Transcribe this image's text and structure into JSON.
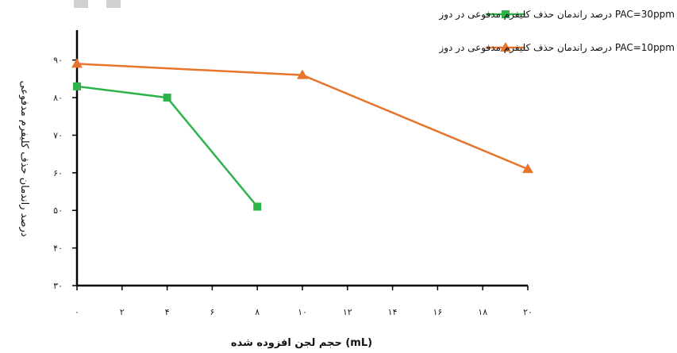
{
  "chart_data": {
    "type": "line",
    "ylabel": "درصد راندمان حذف کلیفرم مدفوعی",
    "xlabel": "حجم لجن افزوده شده (mL)",
    "xlim": [
      0,
      20
    ],
    "ylim": [
      30,
      95
    ],
    "x_ticks": [
      0,
      2,
      4,
      6,
      8,
      10,
      12,
      14,
      16,
      18,
      20
    ],
    "x_tick_labels": [
      "۰",
      "۲",
      "۴",
      "۶",
      "۸",
      "۱۰",
      "۱۲",
      "۱۴",
      "۱۶",
      "۱۸",
      "۲۰"
    ],
    "y_ticks": [
      30,
      40,
      50,
      60,
      70,
      80,
      90
    ],
    "y_tick_labels": [
      "۳۰",
      "۴۰",
      "۵۰",
      "۶۰",
      "۷۰",
      "۸۰",
      "۹۰"
    ],
    "grid": false,
    "legend_position": "top-right",
    "series": [
      {
        "name": "درصد راندمان حذف کلیفرم مدفوعی در دوز PAC=30ppm",
        "color": "#2db34a",
        "marker": "square",
        "x": [
          0,
          4,
          8
        ],
        "y": [
          83,
          80,
          51
        ]
      },
      {
        "name": "درصد راندمان حذف کلیفرم مدفوعی در دوز PAC=10ppm",
        "color": "#e8752c",
        "marker": "triangle",
        "x": [
          0,
          10,
          20
        ],
        "y": [
          89,
          86,
          61
        ]
      }
    ]
  }
}
